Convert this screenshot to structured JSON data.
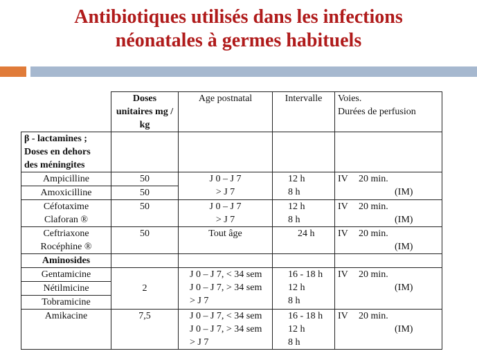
{
  "title": {
    "line1": "Antibiotiques utilisés dans les infections",
    "line2": "néonatales à germes habituels"
  },
  "colors": {
    "title": "#b01b1b",
    "bar_orange": "#e07b39",
    "bar_blue": "#a6b8cf"
  },
  "table": {
    "headers": {
      "doses": "Doses\nunitaires mg /\nkg",
      "age": "Age postnatal",
      "interval": "Intervalle",
      "voies": "Voies.\nDurées de perfusion"
    },
    "section_beta": "β - lactamines ;\nDoses en dehors\ndes méningites",
    "section_amino": "Aminosides",
    "ampicilline": {
      "names": [
        "Ampicilline",
        "Amoxicilline"
      ],
      "doses": [
        "50",
        "50"
      ],
      "age": "J 0 – J 7\n> J 7",
      "interval": "12 h\n  8 h",
      "route": "IV",
      "duration": "20 min.",
      "im": "(IM)"
    },
    "cefotaxime": {
      "names": [
        "Céfotaxime",
        "Claforan ®"
      ],
      "dose": "50",
      "age": "J 0 – J 7\n> J 7",
      "interval": "12 h\n  8 h",
      "route": "IV",
      "duration": "20 min.",
      "im": "(IM)"
    },
    "ceftriaxone": {
      "names": [
        "Ceftriaxone",
        "Rocéphine ®"
      ],
      "dose": "50",
      "age": "Tout âge",
      "interval": "24 h",
      "route": "IV",
      "duration": "20 min.",
      "im": "(IM)"
    },
    "aminosides_group": {
      "names": [
        "Gentamicine",
        "Nétilmicine",
        "Tobramicine"
      ],
      "dose": "2",
      "age": "J 0 – J 7, < 34 sem\nJ 0 – J 7, > 34 sem\n> J 7",
      "interval": "16 - 18 h\n12 h\n8 h",
      "route": "IV",
      "duration": "20 min.",
      "im": "(IM)"
    },
    "amikacine": {
      "name": "Amikacine",
      "dose": "7,5",
      "age": "J 0 – J 7, < 34 sem\nJ 0 – J 7, > 34 sem\n> J 7",
      "interval": "16 - 18 h\n12 h\n  8 h",
      "route": "IV",
      "duration": "20 min.",
      "im": "(IM)"
    }
  }
}
